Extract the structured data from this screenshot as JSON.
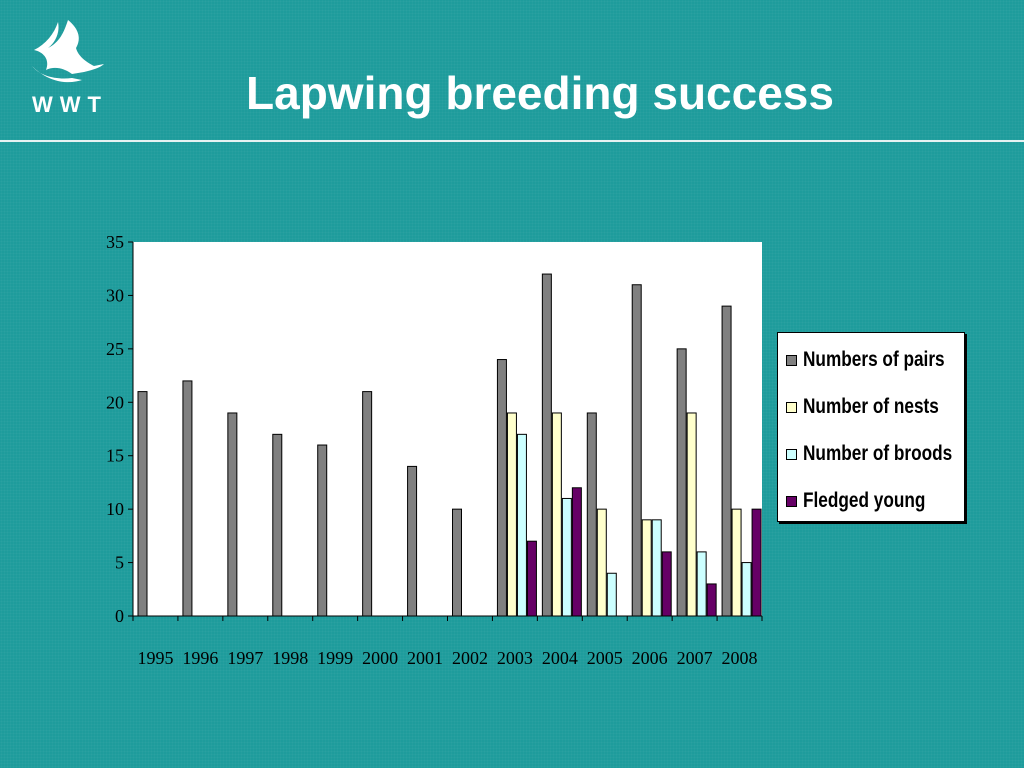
{
  "slide": {
    "title": "Lapwing breeding success",
    "logo_text": "WWT"
  },
  "colors": {
    "background": "#1e9c9c",
    "pairs": "#808080",
    "nests": "#ffffcc",
    "broods": "#ccffff",
    "fledged": "#660066"
  },
  "chart_data": {
    "type": "bar",
    "categories": [
      "1995",
      "1996",
      "1997",
      "1998",
      "1999",
      "2000",
      "2001",
      "2002",
      "2003",
      "2004",
      "2005",
      "2006",
      "2007",
      "2008"
    ],
    "series": [
      {
        "name": "Numbers of pairs",
        "values": [
          21,
          22,
          19,
          17,
          16,
          21,
          14,
          10,
          24,
          32,
          19,
          31,
          25,
          29
        ]
      },
      {
        "name": "Number of nests",
        "values": [
          0,
          0,
          0,
          0,
          0,
          0,
          0,
          0,
          19,
          19,
          10,
          9,
          19,
          10
        ]
      },
      {
        "name": "Number of broods",
        "values": [
          0,
          0,
          0,
          0,
          0,
          0,
          0,
          0,
          17,
          11,
          4,
          9,
          6,
          5
        ]
      },
      {
        "name": "Fledged young",
        "values": [
          0,
          0,
          0,
          0,
          0,
          0,
          0,
          0,
          7,
          12,
          0,
          6,
          3,
          10
        ]
      }
    ],
    "ylim": [
      0,
      35
    ],
    "yticks": [
      0,
      5,
      10,
      15,
      20,
      25,
      30,
      35
    ],
    "grid": false,
    "legend_position": "right"
  }
}
